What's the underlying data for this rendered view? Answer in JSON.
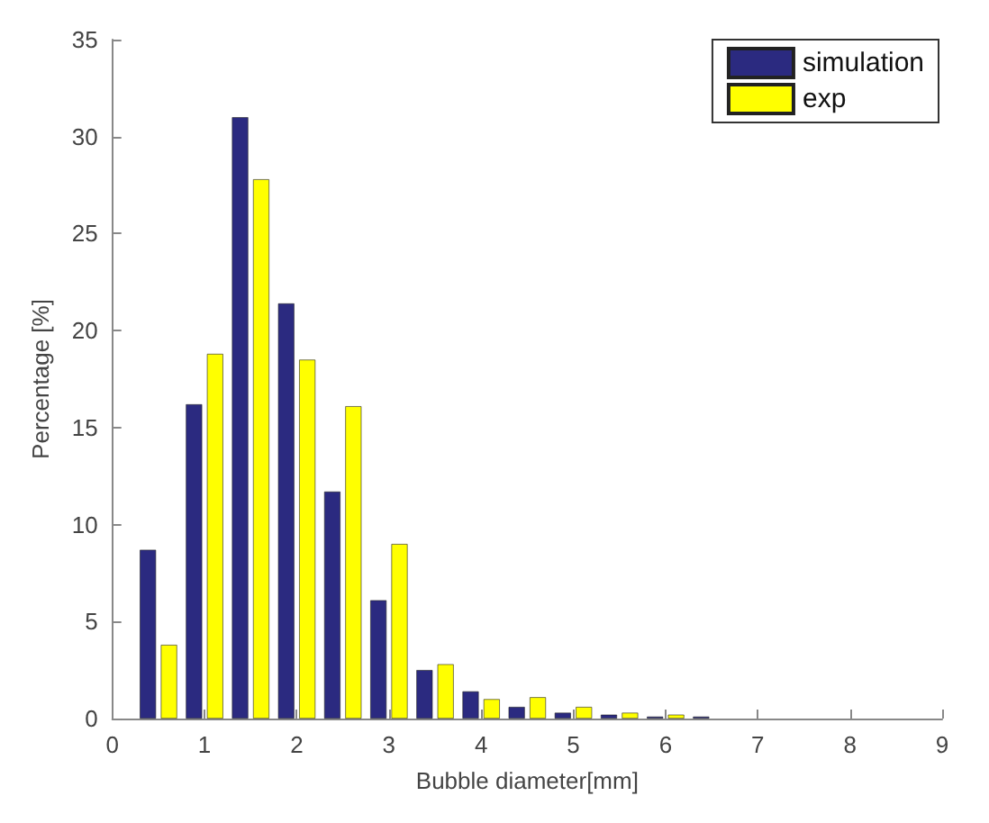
{
  "chart_data": {
    "type": "bar",
    "xlabel": "Bubble diameter[mm]",
    "ylabel": "Percentage [%]",
    "x": [
      0.5,
      1,
      1.5,
      2,
      2.5,
      3,
      3.5,
      4,
      4.5,
      5,
      5.5,
      6,
      6.5
    ],
    "series": [
      {
        "name": "simulation",
        "color": "#2b2a80",
        "values": [
          8.7,
          16.2,
          31,
          21.4,
          11.7,
          6.1,
          2.5,
          1.4,
          0.6,
          0.3,
          0.2,
          0.1,
          0.1
        ]
      },
      {
        "name": "exp",
        "color": "#ffff00",
        "values": [
          3.8,
          18.8,
          27.8,
          18.5,
          16.1,
          9.0,
          2.8,
          1.0,
          1.1,
          0.6,
          0.3,
          0.2,
          null
        ]
      }
    ],
    "xlim": [
      0,
      9
    ],
    "xticks": [
      0,
      1,
      2,
      3,
      4,
      5,
      6,
      7,
      8,
      9
    ],
    "ylim": [
      0,
      35
    ],
    "yticks": [
      0,
      5,
      10,
      15,
      20,
      25,
      30,
      35
    ],
    "grid": false,
    "legend": "top right"
  }
}
